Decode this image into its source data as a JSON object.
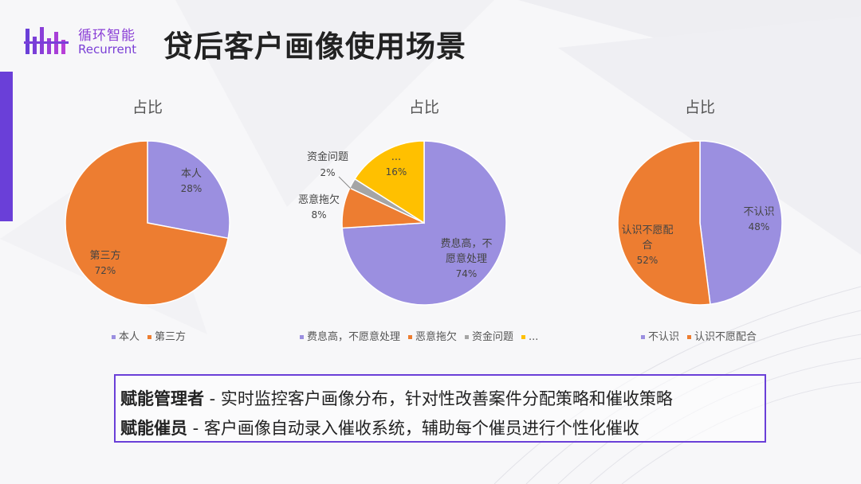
{
  "header": {
    "logo_cn": "循环智能",
    "logo_en": "Recurrent",
    "title": "贷后客户画像使用场景"
  },
  "colors": {
    "accent": "#6a3fd8",
    "purple_slice": "#9b8fe0",
    "orange_slice": "#ed7d31",
    "gray_slice": "#a5a5a5",
    "yellow_slice": "#ffc000"
  },
  "chart_data": [
    {
      "type": "pie",
      "title": "占比",
      "slices": [
        {
          "name": "本人",
          "value": 28,
          "label": "28%"
        },
        {
          "name": "第三方",
          "value": 72,
          "label": "72%"
        }
      ],
      "legend": [
        "本人",
        "第三方"
      ]
    },
    {
      "type": "pie",
      "title": "占比",
      "slices": [
        {
          "name": "费息高，不愿意处理",
          "value": 74,
          "label": "74%"
        },
        {
          "name": "恶意拖欠",
          "value": 8,
          "label": "8%"
        },
        {
          "name": "资金问题",
          "value": 2,
          "label": "2%"
        },
        {
          "name": "...",
          "value": 16,
          "label": "16%"
        }
      ],
      "legend": [
        "费息高，不愿意处理",
        "恶意拖欠",
        "资金问题",
        "..."
      ]
    },
    {
      "type": "pie",
      "title": "占比",
      "slices": [
        {
          "name": "不认识",
          "value": 48,
          "label": "48%"
        },
        {
          "name": "认识不愿配合",
          "value": 52,
          "label": "52%"
        }
      ],
      "legend": [
        "不认识",
        "认识不愿配合"
      ]
    }
  ],
  "info": {
    "line1_strong": "赋能管理者",
    "line1_text": " - 实时监控客户画像分布，针对性改善案件分配策略和催收策略",
    "line2_strong": "赋能催员",
    "line2_text": " - 客户画像自动录入催收系统，辅助每个催员进行个性化催收"
  }
}
